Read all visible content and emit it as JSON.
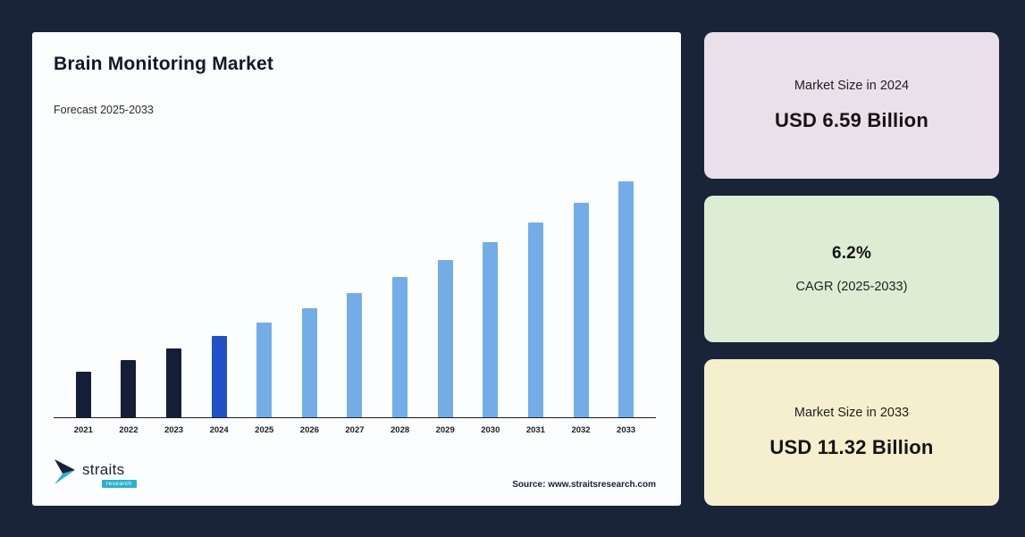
{
  "frame": {
    "background": "#1a2438",
    "panel_background": "#fcfdfe"
  },
  "chart": {
    "title": "Brain Monitoring Market",
    "subtitle": "Forecast 2025-2033",
    "source": "Source: www.straitsresearch.com",
    "logo": {
      "name": "straits",
      "sub": "research",
      "icon": "straits-arrow-logo",
      "icon_colors": [
        "#16213b",
        "#27b3cf"
      ]
    }
  },
  "chart_data": {
    "type": "bar",
    "title": "Brain Monitoring Market",
    "subtitle": "Forecast 2025-2033",
    "categories": [
      "2021",
      "2022",
      "2023",
      "2024",
      "2025",
      "2026",
      "2027",
      "2028",
      "2029",
      "2030",
      "2031",
      "2032",
      "2033"
    ],
    "values": [
      5.5,
      5.84,
      6.2,
      6.59,
      7.0,
      7.43,
      7.89,
      8.38,
      8.9,
      9.45,
      10.04,
      10.66,
      11.32
    ],
    "unit": "USD Billion",
    "xlabel": "",
    "ylabel": "",
    "ylim": [
      4.1,
      11.8
    ],
    "grid": false,
    "legend": false,
    "bar_colors": {
      "historical": "#151e38",
      "current": "#2151c9",
      "forecast": "#72ade7"
    },
    "color_map": [
      "historical",
      "historical",
      "historical",
      "current",
      "forecast",
      "forecast",
      "forecast",
      "forecast",
      "forecast",
      "forecast",
      "forecast",
      "forecast",
      "forecast"
    ],
    "annotations": {
      "market_size_2024": "USD 6.59 Billion",
      "cagr_2025_2033": "6.2%",
      "market_size_2033": "USD 11.32 Billion"
    }
  },
  "cards": [
    {
      "label": "Market Size in 2024",
      "value": "USD 6.59 Billion",
      "background": "#eae0ea",
      "order": "label-first"
    },
    {
      "value": "6.2%",
      "label": "CAGR (2025-2033)",
      "background": "#ddedd4",
      "order": "value-first"
    },
    {
      "label": "Market Size in 2033",
      "value": "USD 11.32 Billion",
      "background": "#f6efce",
      "order": "label-first"
    }
  ]
}
